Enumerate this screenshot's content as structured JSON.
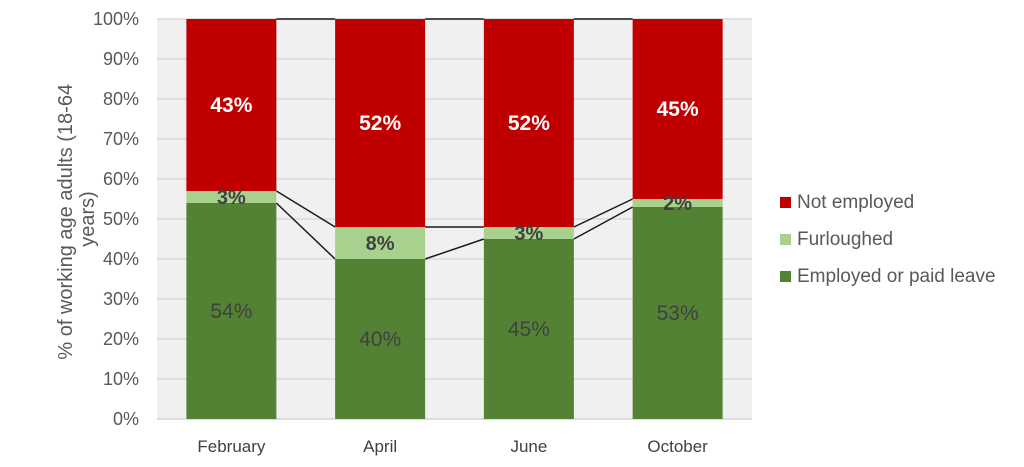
{
  "chart_data": {
    "type": "bar",
    "stacked": true,
    "title": "",
    "xlabel": "",
    "ylabel": "% of working age adults (18-64 years)",
    "ylabel_lines": [
      "% of working age adults (18-64",
      "years)"
    ],
    "ylim": [
      0,
      100
    ],
    "yticks": [
      "0%",
      "10%",
      "20%",
      "30%",
      "40%",
      "50%",
      "60%",
      "70%",
      "80%",
      "90%",
      "100%"
    ],
    "categories": [
      "February",
      "April",
      "June",
      "October"
    ],
    "series": [
      {
        "name": "Employed or paid leave",
        "color": "#548235",
        "values": [
          54,
          40,
          45,
          53
        ],
        "labels": [
          "54%",
          "40%",
          "45%",
          "53%"
        ]
      },
      {
        "name": "Furloughed",
        "color": "#a9d18e",
        "values": [
          3,
          8,
          3,
          2
        ],
        "labels": [
          "3%",
          "8%",
          "3%",
          "2%"
        ]
      },
      {
        "name": "Not employed",
        "color": "#c00000",
        "values": [
          43,
          52,
          52,
          45
        ],
        "labels": [
          "43%",
          "52%",
          "52%",
          "45%"
        ]
      }
    ],
    "grid": true,
    "series_lines": true,
    "legend_position": "right",
    "plot_background": "#f0f0f0"
  },
  "legend": {
    "items": [
      {
        "label": "Not employed",
        "color": "#c00000"
      },
      {
        "label": "Furloughed",
        "color": "#a9d18e"
      },
      {
        "label": "Employed or paid leave",
        "color": "#548235"
      }
    ]
  }
}
